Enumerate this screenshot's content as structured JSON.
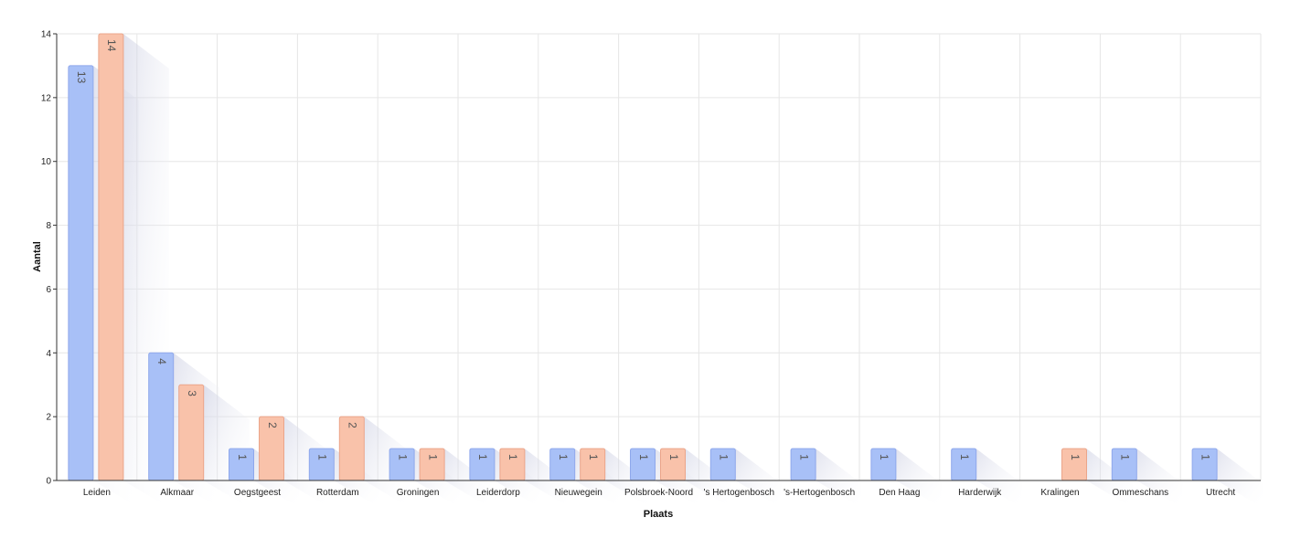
{
  "chart_data": {
    "type": "bar",
    "xlabel": "Plaats",
    "ylabel": "Aantal",
    "ylim": [
      0,
      14
    ],
    "yticks": [
      0,
      2,
      4,
      6,
      8,
      10,
      12,
      14
    ],
    "grid": true,
    "categories": [
      "Leiden",
      "Alkmaar",
      "Oegstgeest",
      "Rotterdam",
      "Groningen",
      "Leiderdorp",
      "Nieuwegein",
      "Polsbroek-Noord",
      "'s Hertogenbosch",
      "'s-Hertogenbosch",
      "Den Haag",
      "Harderwijk",
      "Kralingen",
      "Ommeschans",
      "Utrecht"
    ],
    "series": [
      {
        "values": [
          13,
          4,
          1,
          1,
          1,
          1,
          1,
          1,
          1,
          1,
          1,
          1,
          null,
          1,
          1
        ],
        "color": "#a8c0f7",
        "stroke": "#8fa8ec"
      },
      {
        "values": [
          14,
          3,
          2,
          2,
          1,
          1,
          1,
          1,
          null,
          null,
          null,
          null,
          1,
          null,
          null
        ],
        "color": "#f9c2aa",
        "stroke": "#eba58a"
      }
    ]
  }
}
